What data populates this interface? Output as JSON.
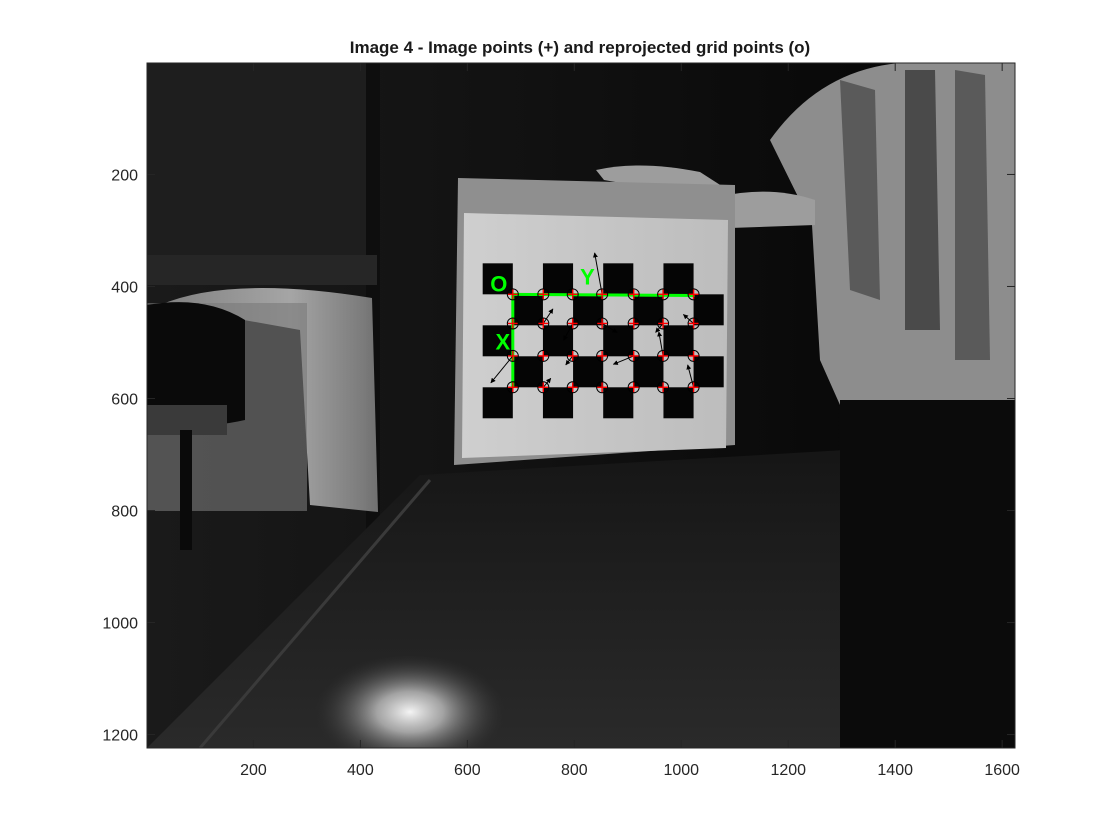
{
  "chart_data": {
    "type": "scatter",
    "title": "Image 4 - Image points (+) and reprojected grid points (o)",
    "xlabel": "",
    "ylabel": "",
    "xlim": [
      1,
      1624
    ],
    "ylim": [
      1,
      1224
    ],
    "y_reversed": true,
    "xticks": [
      200,
      400,
      600,
      800,
      1000,
      1200,
      1400,
      1600
    ],
    "yticks": [
      200,
      400,
      600,
      800,
      1000,
      1200
    ],
    "grid": false,
    "axis_labels": {
      "origin": "O",
      "x_axis": "X",
      "y_axis": "Y"
    },
    "colors": {
      "axis_line": "#00ff00",
      "image_point": "#ff0000",
      "reprojected_point": "#000000",
      "error_arrow": "#000000"
    },
    "grid_points": {
      "columns_x": [
        685,
        742,
        797,
        852,
        911,
        966,
        1023
      ],
      "rows_y": [
        414,
        466,
        524,
        580
      ],
      "marker_image": "+",
      "marker_reprojected": "o"
    },
    "axis_lines": {
      "y_axis_endpoint": [
        1025,
        416
      ],
      "x_axis_endpoint": [
        685,
        580
      ]
    },
    "error_arrows": [
      {
        "from": [
          852,
          414
        ],
        "to": [
          838,
          340
        ]
      },
      {
        "from": [
          685,
          524
        ],
        "to": [
          644,
          572
        ]
      },
      {
        "from": [
          742,
          466
        ],
        "to": [
          760,
          440
        ]
      },
      {
        "from": [
          797,
          466
        ],
        "to": [
          780,
          496
        ]
      },
      {
        "from": [
          911,
          524
        ],
        "to": [
          873,
          539
        ]
      },
      {
        "from": [
          966,
          466
        ],
        "to": [
          952,
          482
        ]
      },
      {
        "from": [
          1023,
          466
        ],
        "to": [
          1004,
          450
        ]
      },
      {
        "from": [
          966,
          524
        ],
        "to": [
          958,
          481
        ]
      },
      {
        "from": [
          1023,
          580
        ],
        "to": [
          1012,
          540
        ]
      },
      {
        "from": [
          797,
          524
        ],
        "to": [
          784,
          540
        ]
      },
      {
        "from": [
          852,
          466
        ],
        "to": [
          880,
          482
        ]
      },
      {
        "from": [
          742,
          580
        ],
        "to": [
          756,
          564
        ]
      }
    ]
  }
}
